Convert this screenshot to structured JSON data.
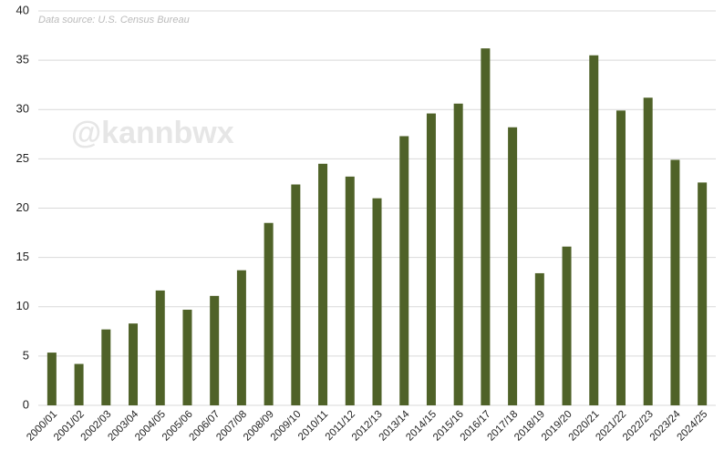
{
  "chart_data": {
    "type": "bar",
    "subtitle": "Data source: U.S. Census Bureau",
    "watermark": "@kannbwx",
    "categories": [
      "2000/01",
      "2001/02",
      "2002/03",
      "2003/04",
      "2004/05",
      "2005/06",
      "2006/07",
      "2007/08",
      "2008/09",
      "2009/10",
      "2010/11",
      "2011/12",
      "2012/13",
      "2013/14",
      "2014/15",
      "2015/16",
      "2016/17",
      "2017/18",
      "2018/19",
      "2019/20",
      "2020/21",
      "2021/22",
      "2022/23",
      "2023/24",
      "2024/25"
    ],
    "values": [
      5.35,
      4.2,
      7.7,
      8.3,
      11.65,
      9.7,
      11.1,
      13.7,
      18.5,
      22.4,
      24.5,
      23.2,
      21.0,
      27.3,
      29.6,
      30.6,
      36.2,
      28.2,
      13.4,
      16.1,
      35.5,
      29.9,
      31.2,
      24.9,
      22.6
    ],
    "color": "#4f6228",
    "ylim": [
      0,
      40
    ],
    "yticks": [
      0,
      5,
      10,
      15,
      20,
      25,
      30,
      35,
      40
    ],
    "grid": true
  }
}
